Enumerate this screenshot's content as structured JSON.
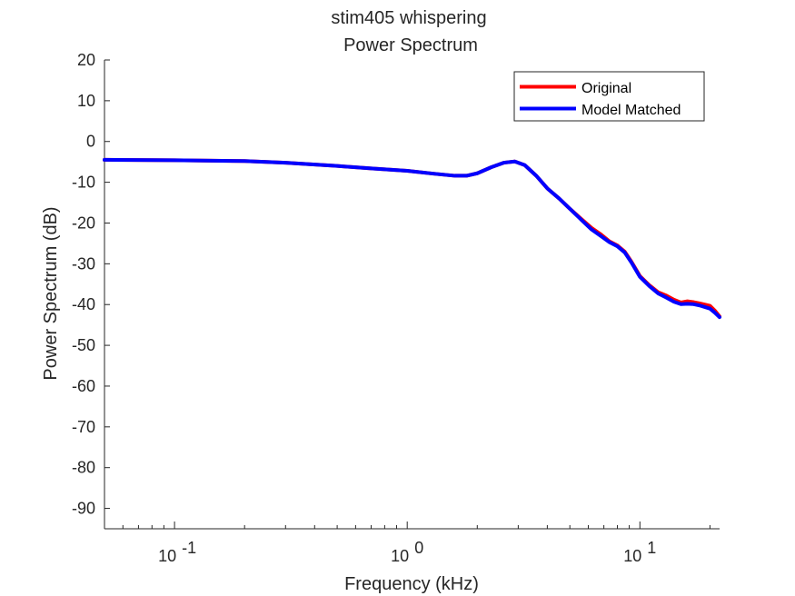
{
  "chart_data": {
    "type": "line",
    "title": [
      "stim405 whispering",
      "Power Spectrum"
    ],
    "xlabel": "Frequency (kHz)",
    "ylabel": "Power Spectrum (dB)",
    "xscale": "log",
    "xlim": [
      0.05,
      22
    ],
    "ylim": [
      -95,
      20
    ],
    "yticks": [
      20,
      10,
      0,
      -10,
      -20,
      -30,
      -40,
      -50,
      -60,
      -70,
      -80,
      -90
    ],
    "xticks": [
      {
        "value": 0.1,
        "base": "10",
        "exp": "-1"
      },
      {
        "value": 1,
        "base": "10",
        "exp": "0"
      },
      {
        "value": 10,
        "base": "10",
        "exp": "1"
      }
    ],
    "grid": false,
    "box": false,
    "legend": {
      "location": "top-right"
    },
    "series": [
      {
        "name": "Original",
        "color": "#ff0000",
        "x": [
          0.05,
          0.1,
          0.2,
          0.3,
          0.5,
          0.7,
          1.0,
          1.3,
          1.6,
          1.8,
          2.0,
          2.3,
          2.6,
          2.9,
          3.2,
          3.6,
          4.0,
          4.5,
          5.0,
          5.6,
          6.2,
          6.8,
          7.4,
          8.0,
          8.6,
          9.2,
          10.0,
          11.0,
          12.0,
          13.0,
          14.0,
          15.0,
          16.0,
          17.0,
          18.0,
          19.0,
          20.0,
          21.0,
          22.0
        ],
        "y": [
          -4.5,
          -4.6,
          -4.8,
          -5.2,
          -6.0,
          -6.6,
          -7.2,
          -7.9,
          -8.4,
          -8.4,
          -7.8,
          -6.3,
          -5.2,
          -4.9,
          -5.8,
          -8.5,
          -11.5,
          -14.0,
          -16.5,
          -19.0,
          -21.2,
          -22.8,
          -24.5,
          -25.5,
          -27.0,
          -29.5,
          -33.0,
          -35.3,
          -37.0,
          -37.8,
          -38.8,
          -39.5,
          -39.2,
          -39.4,
          -39.7,
          -40.0,
          -40.3,
          -41.5,
          -42.9
        ]
      },
      {
        "name": "Model Matched",
        "color": "#0000ff",
        "x": [
          0.05,
          0.1,
          0.2,
          0.3,
          0.5,
          0.7,
          1.0,
          1.3,
          1.6,
          1.8,
          2.0,
          2.3,
          2.6,
          2.9,
          3.2,
          3.6,
          4.0,
          4.5,
          5.0,
          5.6,
          6.2,
          6.8,
          7.4,
          8.0,
          8.6,
          9.2,
          10.0,
          11.0,
          12.0,
          13.0,
          14.0,
          15.0,
          16.0,
          17.0,
          18.0,
          19.0,
          20.0,
          21.0,
          22.0
        ],
        "y": [
          -4.5,
          -4.6,
          -4.8,
          -5.2,
          -6.0,
          -6.6,
          -7.2,
          -7.9,
          -8.4,
          -8.4,
          -7.8,
          -6.3,
          -5.2,
          -4.9,
          -5.8,
          -8.5,
          -11.5,
          -14.0,
          -16.5,
          -19.2,
          -21.6,
          -23.2,
          -24.7,
          -25.7,
          -27.2,
          -29.7,
          -33.2,
          -35.5,
          -37.3,
          -38.3,
          -39.3,
          -39.9,
          -39.8,
          -39.9,
          -40.2,
          -40.6,
          -41.0,
          -42.0,
          -43.1
        ]
      }
    ]
  }
}
